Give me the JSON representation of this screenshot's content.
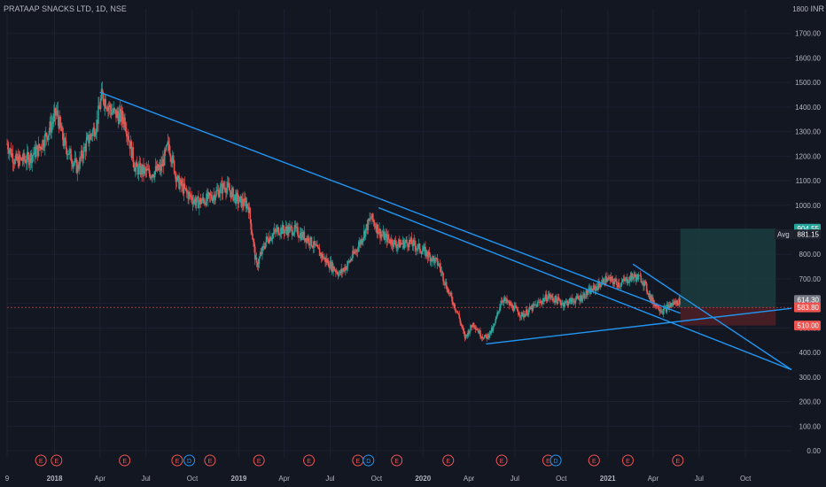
{
  "header": {
    "title": "PRATAAP SNACKS LTD, 1D, NSE",
    "currency": "INR"
  },
  "colors": {
    "background": "#131722",
    "up": "#26a69a",
    "down": "#ef5350",
    "trendline": "#2196f3",
    "axis_text": "#b2b5be",
    "target_zone": "#1b3d3e",
    "stop_zone": "#4a1e26",
    "earnings": "#ef5350",
    "dividend": "#2196f3"
  },
  "chart_data": {
    "type": "candlestick",
    "y_axis": {
      "min": 0,
      "max": 1800,
      "ticks": [
        0,
        100,
        200,
        300,
        400,
        500,
        600,
        700,
        800,
        900,
        1000,
        1100,
        1200,
        1300,
        1400,
        1500,
        1600,
        1700
      ],
      "tick_labels": [
        "0.00",
        "100.00",
        "200.00",
        "300.00",
        "400.00",
        "500.00",
        "600.00",
        "700.00",
        "800.00",
        "900.00",
        "1000.00",
        "1100.00",
        "1200.00",
        "1300.00",
        "1400.00",
        "1500.00",
        "1600.00",
        "1700.00"
      ],
      "top_label": "1800"
    },
    "x_axis": {
      "range": [
        "2017-09-29",
        "2021-12-31"
      ],
      "ticks": [
        {
          "date": "2017-09-29",
          "label": "9"
        },
        {
          "date": "2018-01-01",
          "label": "2018"
        },
        {
          "date": "2018-04-01",
          "label": "Apr"
        },
        {
          "date": "2018-07-01",
          "label": "Jul"
        },
        {
          "date": "2018-10-01",
          "label": "Oct"
        },
        {
          "date": "2019-01-01",
          "label": "2019"
        },
        {
          "date": "2019-04-01",
          "label": "Apr"
        },
        {
          "date": "2019-07-01",
          "label": "Jul"
        },
        {
          "date": "2019-10-01",
          "label": "Oct"
        },
        {
          "date": "2020-01-01",
          "label": "2020"
        },
        {
          "date": "2020-04-01",
          "label": "Apr"
        },
        {
          "date": "2020-07-01",
          "label": "Jul"
        },
        {
          "date": "2020-10-01",
          "label": "Oct"
        },
        {
          "date": "2021-01-01",
          "label": "2021"
        },
        {
          "date": "2021-04-01",
          "label": "Apr"
        },
        {
          "date": "2021-07-01",
          "label": "Jul"
        },
        {
          "date": "2021-10-01",
          "label": "Oct"
        }
      ]
    },
    "price_path": [
      [
        "2017-09-29",
        1250
      ],
      [
        "2017-10-15",
        1180
      ],
      [
        "2017-11-10",
        1190
      ],
      [
        "2017-12-01",
        1230
      ],
      [
        "2017-12-20",
        1300
      ],
      [
        "2018-01-05",
        1380
      ],
      [
        "2018-01-20",
        1250
      ],
      [
        "2018-02-15",
        1150
      ],
      [
        "2018-03-05",
        1250
      ],
      [
        "2018-03-25",
        1330
      ],
      [
        "2018-04-05",
        1450
      ],
      [
        "2018-04-25",
        1380
      ],
      [
        "2018-05-20",
        1350
      ],
      [
        "2018-06-10",
        1150
      ],
      [
        "2018-07-10",
        1130
      ],
      [
        "2018-07-31",
        1150
      ],
      [
        "2018-08-15",
        1250
      ],
      [
        "2018-09-01",
        1100
      ],
      [
        "2018-09-20",
        1050
      ],
      [
        "2018-10-10",
        1010
      ],
      [
        "2018-11-05",
        1030
      ],
      [
        "2018-12-05",
        1080
      ],
      [
        "2018-12-30",
        1020
      ],
      [
        "2019-01-20",
        1000
      ],
      [
        "2019-02-05",
        750
      ],
      [
        "2019-02-25",
        860
      ],
      [
        "2019-03-20",
        900
      ],
      [
        "2019-04-20",
        900
      ],
      [
        "2019-05-20",
        860
      ],
      [
        "2019-06-20",
        780
      ],
      [
        "2019-07-20",
        720
      ],
      [
        "2019-08-05",
        760
      ],
      [
        "2019-08-25",
        830
      ],
      [
        "2019-09-20",
        950
      ],
      [
        "2019-10-10",
        880
      ],
      [
        "2019-11-10",
        840
      ],
      [
        "2019-12-05",
        850
      ],
      [
        "2020-01-05",
        810
      ],
      [
        "2020-02-01",
        760
      ],
      [
        "2020-02-20",
        650
      ],
      [
        "2020-03-10",
        560
      ],
      [
        "2020-03-24",
        460
      ],
      [
        "2020-04-10",
        520
      ],
      [
        "2020-04-25",
        470
      ],
      [
        "2020-05-05",
        460
      ],
      [
        "2020-05-20",
        500
      ],
      [
        "2020-06-05",
        620
      ],
      [
        "2020-06-30",
        580
      ],
      [
        "2020-07-15",
        550
      ],
      [
        "2020-08-10",
        590
      ],
      [
        "2020-09-05",
        630
      ],
      [
        "2020-10-05",
        600
      ],
      [
        "2020-11-05",
        620
      ],
      [
        "2020-12-05",
        660
      ],
      [
        "2020-12-30",
        700
      ],
      [
        "2021-01-25",
        680
      ],
      [
        "2021-02-20",
        710
      ],
      [
        "2021-03-10",
        700
      ],
      [
        "2021-03-30",
        610
      ],
      [
        "2021-04-20",
        570
      ],
      [
        "2021-05-10",
        600
      ],
      [
        "2021-05-25",
        610
      ]
    ],
    "price_lines": [
      {
        "value": 904.55,
        "label": "904.55",
        "color": "#26a69a"
      },
      {
        "value": 881.15,
        "label": "881.15",
        "prefix": "Avg",
        "color": "#1e222d"
      },
      {
        "value": 614.3,
        "label": "614.30",
        "color": "#787b86"
      },
      {
        "value": 583.8,
        "label": "583.80",
        "color": "#ef5350"
      },
      {
        "value": 510.0,
        "label": "510.00",
        "color": "#ef5350"
      }
    ],
    "trendlines": [
      {
        "from": [
          "2018-04-01",
          1460
        ],
        "to": [
          "2021-05-25",
          560
        ]
      },
      {
        "from": [
          "2020-05-05",
          435
        ],
        "to": [
          "2021-12-31",
          580
        ]
      },
      {
        "from": [
          "2021-02-20",
          760
        ],
        "to": [
          "2021-12-31",
          330
        ]
      },
      {
        "from": [
          "2019-10-05",
          990
        ],
        "to": [
          "2021-12-31",
          330
        ]
      }
    ],
    "position": {
      "start": "2021-05-25",
      "end": "2021-11-30",
      "entry": 583.8,
      "target": 904.55,
      "stop": 510.0
    },
    "events": [
      {
        "date": "2017-12-05",
        "type": "E"
      },
      {
        "date": "2018-01-05",
        "type": "E"
      },
      {
        "date": "2018-05-20",
        "type": "E"
      },
      {
        "date": "2018-09-01",
        "type": "E"
      },
      {
        "date": "2018-09-25",
        "type": "D"
      },
      {
        "date": "2018-11-05",
        "type": "E"
      },
      {
        "date": "2019-02-10",
        "type": "E"
      },
      {
        "date": "2019-05-20",
        "type": "E"
      },
      {
        "date": "2019-08-25",
        "type": "E"
      },
      {
        "date": "2019-09-15",
        "type": "D"
      },
      {
        "date": "2019-11-10",
        "type": "E"
      },
      {
        "date": "2020-02-20",
        "type": "E"
      },
      {
        "date": "2020-06-05",
        "type": "E"
      },
      {
        "date": "2020-09-05",
        "type": "E"
      },
      {
        "date": "2020-09-20",
        "type": "D"
      },
      {
        "date": "2020-12-05",
        "type": "E"
      },
      {
        "date": "2021-02-10",
        "type": "E"
      },
      {
        "date": "2021-05-20",
        "type": "E"
      }
    ]
  }
}
